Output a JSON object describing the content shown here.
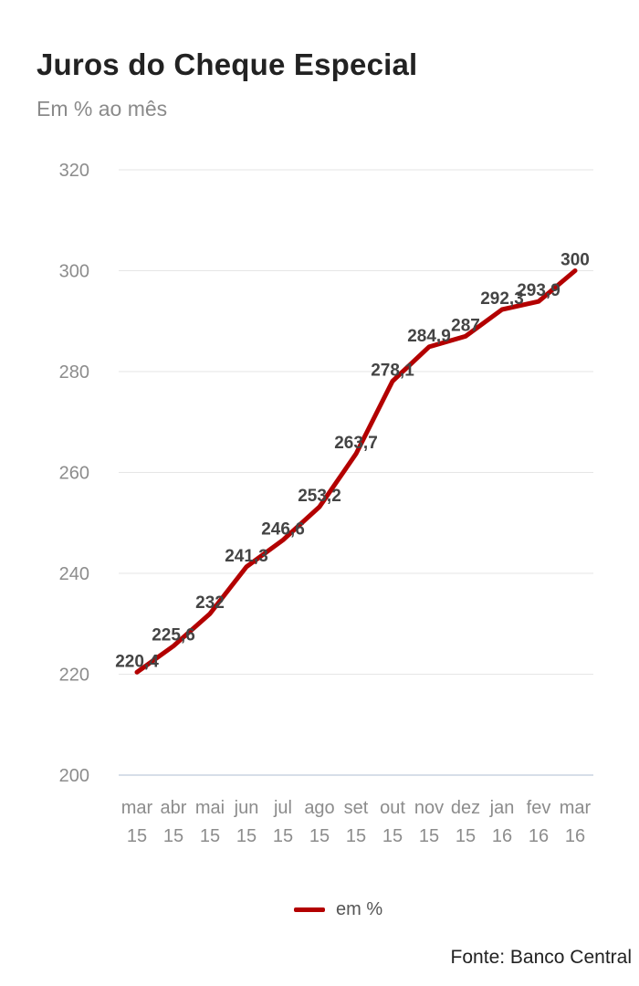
{
  "title": "Juros do Cheque Especial",
  "subtitle": "Em % ao mês",
  "source": "Fonte: Banco Central",
  "colors": {
    "line": "#b30000",
    "grid": "#e6e6e6",
    "axis": "#c9d3e0"
  },
  "chart_data": {
    "type": "line",
    "title": "Juros do Cheque Especial",
    "subtitle": "Em % ao mês",
    "xlabel": "",
    "ylabel": "",
    "ylim": [
      200,
      320
    ],
    "yticks": [
      "200",
      "220",
      "240",
      "260",
      "280",
      "300",
      "320"
    ],
    "grid": true,
    "legend_position": "bottom",
    "categories": [
      [
        "mar",
        "15"
      ],
      [
        "abr",
        "15"
      ],
      [
        "mai",
        "15"
      ],
      [
        "jun",
        "15"
      ],
      [
        "jul",
        "15"
      ],
      [
        "ago",
        "15"
      ],
      [
        "set",
        "15"
      ],
      [
        "out",
        "15"
      ],
      [
        "nov",
        "15"
      ],
      [
        "dez",
        "15"
      ],
      [
        "jan",
        "16"
      ],
      [
        "fev",
        "16"
      ],
      [
        "mar",
        "16"
      ]
    ],
    "series": [
      {
        "name": "em %",
        "values": [
          220.4,
          225.6,
          232,
          241.3,
          246.6,
          253.2,
          263.7,
          278.1,
          284.9,
          287,
          292.3,
          293.9,
          300
        ],
        "labels": [
          "220,4",
          "225,6",
          "232",
          "241,3",
          "246,6",
          "253,2",
          "263,7",
          "278,1",
          "284,9",
          "287",
          "292,3",
          "293,9",
          "300"
        ]
      }
    ]
  }
}
